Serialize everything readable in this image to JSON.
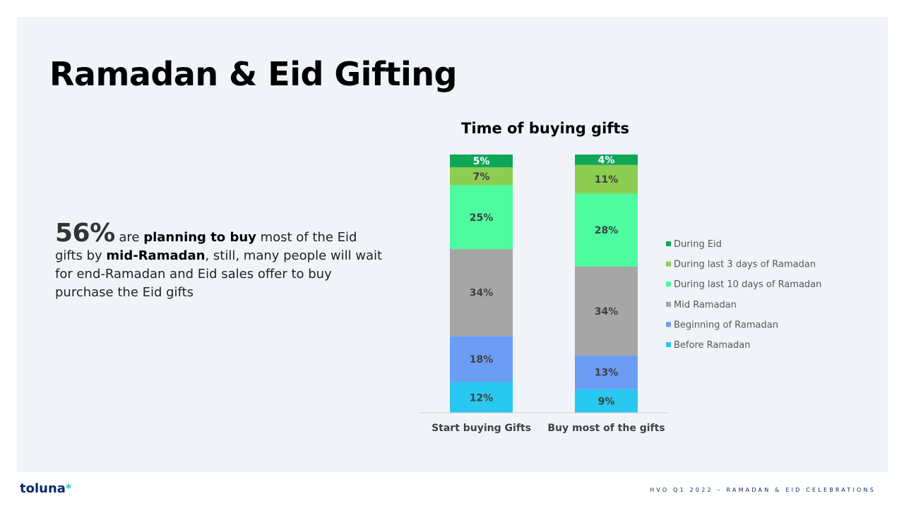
{
  "slide": {
    "title": "Ramadan & Eid Gifting",
    "callout": {
      "big_number": "56%",
      "text_1": " are ",
      "bold_1": "planning to buy",
      "text_2": " most of the Eid gifts by ",
      "bold_2": "mid-Ramadan",
      "text_3": ", still, many people will wait for end-Ramadan and Eid sales offer to buy purchase the Eid gifts"
    }
  },
  "chart_data": {
    "type": "bar",
    "stacked": true,
    "percent_stacked": true,
    "title": "Time of buying gifts",
    "categories": [
      "Start buying Gifts",
      "Buy most of the gifts"
    ],
    "series": [
      {
        "name": "Before Ramadan",
        "values": [
          12,
          9
        ],
        "labels": [
          "12%",
          "9%"
        ],
        "color": "#29c8f0"
      },
      {
        "name": "Beginning of Ramadan",
        "values": [
          18,
          13
        ],
        "labels": [
          "18%",
          "13%"
        ],
        "color": "#6b9df5"
      },
      {
        "name": "Mid Ramadan",
        "values": [
          34,
          34
        ],
        "labels": [
          "34%",
          "34%"
        ],
        "color": "#a6a6a6"
      },
      {
        "name": "During last 10 days of Ramadan",
        "values": [
          25,
          28
        ],
        "labels": [
          "25%",
          "28%"
        ],
        "color": "#4cfc9f"
      },
      {
        "name": "During last 3 days of Ramadan",
        "values": [
          7,
          11
        ],
        "labels": [
          "7%",
          "11%"
        ],
        "color": "#8dce52"
      },
      {
        "name": "During Eid",
        "values": [
          5,
          4
        ],
        "labels": [
          "5%",
          "4%"
        ],
        "color": "#0fa757"
      }
    ],
    "legend_position": "right",
    "grid": false
  },
  "footer": {
    "logo": "toluna",
    "logo_star": "*",
    "caption": "HVO Q1 2022 – RAMADAN & EID CELEBRATIONS"
  }
}
